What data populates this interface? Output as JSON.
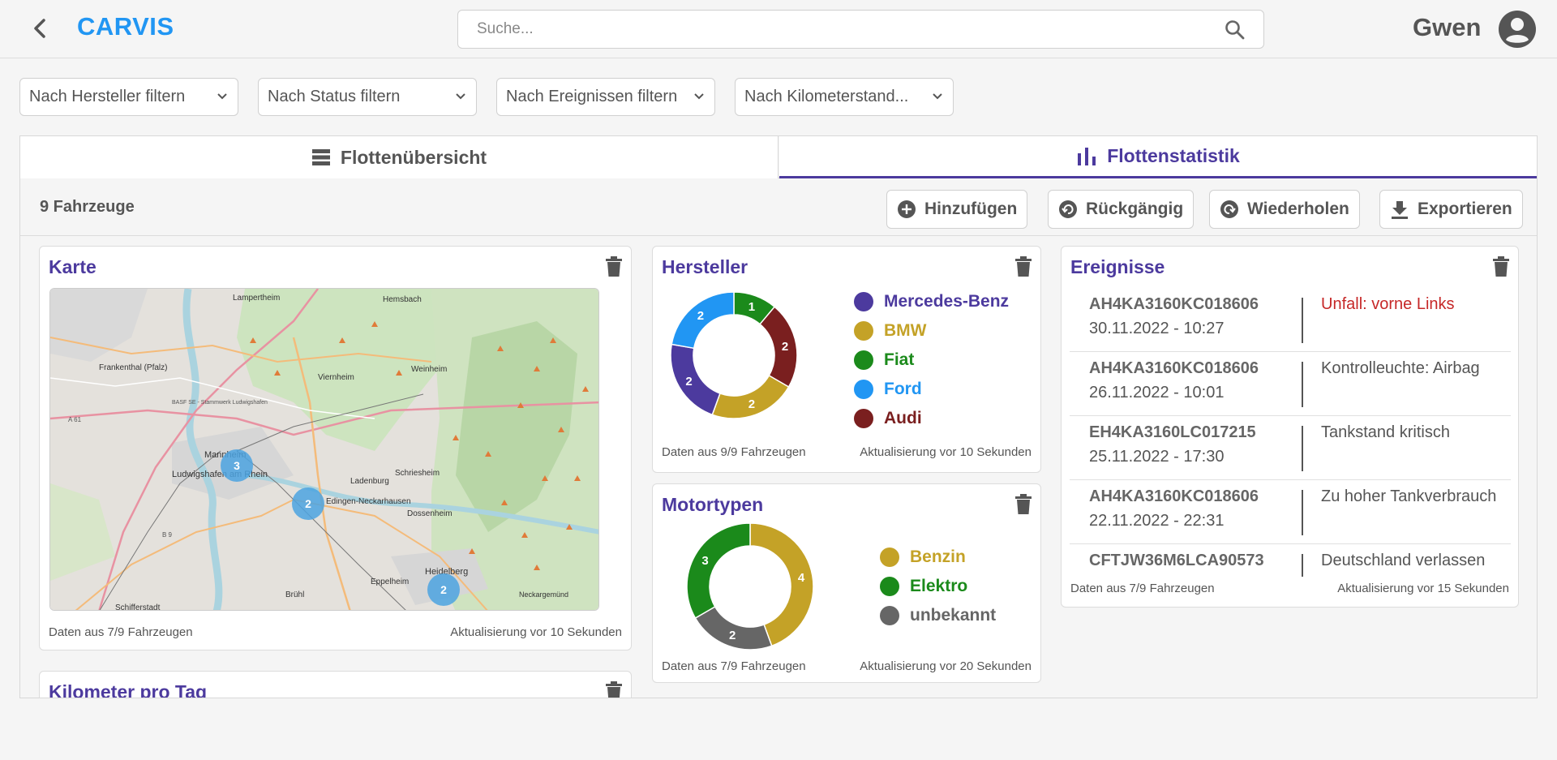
{
  "header": {
    "brand": "CARVIS",
    "search_placeholder": "Suche...",
    "user_name": "Gwen"
  },
  "filters": [
    {
      "label": "Nach Hersteller filtern"
    },
    {
      "label": "Nach Status filtern"
    },
    {
      "label": "Nach Ereignissen filtern"
    },
    {
      "label": "Nach Kilometerstand..."
    }
  ],
  "tabs": [
    {
      "label": "Flottenübersicht",
      "icon": "list-icon",
      "active": false
    },
    {
      "label": "Flottenstatistik",
      "icon": "bar-chart-icon",
      "active": true
    }
  ],
  "toolbar": {
    "count": "9 Fahrzeuge",
    "add": "Hinzufügen",
    "undo": "Rückgängig",
    "redo": "Wiederholen",
    "export": "Exportieren"
  },
  "map_card": {
    "title": "Karte",
    "footer_left": "Daten aus 7/9 Fahrzeugen",
    "footer_right": "Aktualisierung vor 10 Sekunden",
    "places": [
      "Lampertheim",
      "Hemsbach",
      "Frankenthal (Pfalz)",
      "Viernheim",
      "Weinheim",
      "Mannheim",
      "Ludwigshafen am Rhein",
      "Ladenburg",
      "Schriesheim",
      "Edingen-Neckarhausen",
      "Dossenheim",
      "Heidelberg",
      "Eppelheim",
      "Brühl",
      "Schifferstadt",
      "Neckargemünd",
      "BASF SE - Stammwerk Ludwigshafen",
      "A 61",
      "B 9"
    ],
    "clusters": [
      {
        "label": "3",
        "place": "Mannheim"
      },
      {
        "label": "2",
        "place": "Edingen-Neckarhausen"
      },
      {
        "label": "2",
        "place": "Heidelberg"
      }
    ]
  },
  "km_card": {
    "title": "Kilometer pro Tag"
  },
  "hersteller_card": {
    "title": "Hersteller",
    "footer_left": "Daten aus 9/9 Fahrzeugen",
    "footer_right": "Aktualisierung vor 10 Sekunden"
  },
  "motor_card": {
    "title": "Motortypen",
    "footer_left": "Daten aus 7/9 Fahrzeugen",
    "footer_right": "Aktualisierung vor 20 Sekunden"
  },
  "events_card": {
    "title": "Ereignisse",
    "footer_left": "Daten aus 7/9 Fahrzeugen",
    "footer_right": "Aktualisierung vor 15 Sekunden",
    "events": [
      {
        "vin": "AH4KA3160KC018606",
        "date": "30.11.2022 - 10:27",
        "text": "Unfall: vorne Links",
        "color": "#c62828"
      },
      {
        "vin": "AH4KA3160KC018606",
        "date": "26.11.2022 - 10:01",
        "text": "Kontrolleuchte: Airbag",
        "color": "#555555"
      },
      {
        "vin": "EH4KA3160LC017215",
        "date": "25.11.2022 - 17:30",
        "text": "Tankstand kritisch",
        "color": "#555555"
      },
      {
        "vin": "AH4KA3160KC018606",
        "date": "22.11.2022 - 22:31",
        "text": "Zu hoher Tankverbrauch",
        "color": "#555555"
      },
      {
        "vin": "CFTJW36M6LCA90573",
        "date": "",
        "text": "Deutschland verlassen",
        "color": "#555555"
      }
    ]
  },
  "chart_data": [
    {
      "type": "pie",
      "donut": true,
      "title": "Hersteller",
      "categories": [
        "Mercedes-Benz",
        "BMW",
        "Fiat",
        "Ford",
        "Audi"
      ],
      "values": [
        2,
        2,
        1,
        2,
        2
      ],
      "colors": [
        "#4c3a9e",
        "#c4a227",
        "#1b8a1b",
        "#2196f3",
        "#7a1f1f"
      ],
      "draw_order": [
        "Fiat",
        "Audi",
        "BMW",
        "Mercedes-Benz",
        "Ford"
      ],
      "legend": "right"
    },
    {
      "type": "pie",
      "donut": true,
      "title": "Motortypen",
      "categories": [
        "Benzin",
        "Elektro",
        "unbekannt"
      ],
      "values": [
        4,
        3,
        2
      ],
      "colors": [
        "#c4a227",
        "#1b8a1b",
        "#666666"
      ],
      "draw_order": [
        "Benzin",
        "unbekannt",
        "Elektro"
      ],
      "legend": "right"
    }
  ]
}
